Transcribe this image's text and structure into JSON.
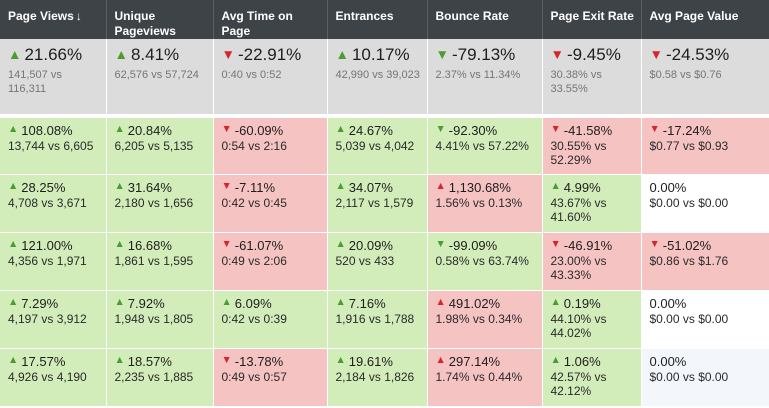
{
  "columns": [
    {
      "label": "Page Views",
      "sort": "↓"
    },
    {
      "label": "Unique Pageviews",
      "sort": ""
    },
    {
      "label": "Avg Time on Page",
      "sort": ""
    },
    {
      "label": "Entrances",
      "sort": ""
    },
    {
      "label": "Bounce Rate",
      "sort": ""
    },
    {
      "label": "Page Exit Rate",
      "sort": ""
    },
    {
      "label": "Avg Page Value",
      "sort": ""
    }
  ],
  "summary": [
    {
      "dir": "up",
      "change": "21.66%",
      "compare": "141,507 vs 116,311"
    },
    {
      "dir": "up",
      "change": "8.41%",
      "compare": "62,576 vs 57,724"
    },
    {
      "dir": "down",
      "change": "-22.91%",
      "compare": "0:40 vs 0:52"
    },
    {
      "dir": "up",
      "change": "10.17%",
      "compare": "42,990 vs 39,023"
    },
    {
      "dir": "down-green",
      "change": "-79.13%",
      "compare": "2.37% vs 11.34%"
    },
    {
      "dir": "down",
      "change": "-9.45%",
      "compare": "30.38% vs 33.55%"
    },
    {
      "dir": "down",
      "change": "-24.53%",
      "compare": "$0.58 vs $0.76"
    }
  ],
  "rows": [
    [
      {
        "dir": "up",
        "change": "108.08%",
        "compare": "13,744 vs 6,605",
        "bg": "green"
      },
      {
        "dir": "up",
        "change": "20.84%",
        "compare": "6,205 vs 5,135",
        "bg": "green"
      },
      {
        "dir": "down",
        "change": "-60.09%",
        "compare": "0:54 vs 2:16",
        "bg": "red"
      },
      {
        "dir": "up",
        "change": "24.67%",
        "compare": "5,039 vs 4,042",
        "bg": "green"
      },
      {
        "dir": "down-green",
        "change": "-92.30%",
        "compare": "4.41% vs 57.22%",
        "bg": "green"
      },
      {
        "dir": "down",
        "change": "-41.58%",
        "compare": "30.55% vs 52.29%",
        "bg": "red"
      },
      {
        "dir": "down",
        "change": "-17.24%",
        "compare": "$0.77 vs $0.93",
        "bg": "red"
      }
    ],
    [
      {
        "dir": "up",
        "change": "28.25%",
        "compare": "4,708 vs 3,671",
        "bg": "green"
      },
      {
        "dir": "up",
        "change": "31.64%",
        "compare": "2,180 vs 1,656",
        "bg": "green"
      },
      {
        "dir": "down",
        "change": "-7.11%",
        "compare": "0:42 vs 0:45",
        "bg": "red"
      },
      {
        "dir": "up",
        "change": "34.07%",
        "compare": "2,117 vs 1,579",
        "bg": "green"
      },
      {
        "dir": "up-red",
        "change": "1,130.68%",
        "compare": "1.56% vs 0.13%",
        "bg": "red"
      },
      {
        "dir": "up",
        "change": "4.99%",
        "compare": "43.67% vs 41.60%",
        "bg": "green"
      },
      {
        "dir": "",
        "change": "0.00%",
        "compare": "$0.00 vs $0.00",
        "bg": "white"
      }
    ],
    [
      {
        "dir": "up",
        "change": "121.00%",
        "compare": "4,356 vs 1,971",
        "bg": "green"
      },
      {
        "dir": "up",
        "change": "16.68%",
        "compare": "1,861 vs 1,595",
        "bg": "green"
      },
      {
        "dir": "down",
        "change": "-61.07%",
        "compare": "0:49 vs 2:06",
        "bg": "red"
      },
      {
        "dir": "up",
        "change": "20.09%",
        "compare": "520 vs 433",
        "bg": "green"
      },
      {
        "dir": "down-green",
        "change": "-99.09%",
        "compare": "0.58% vs 63.74%",
        "bg": "green"
      },
      {
        "dir": "down",
        "change": "-46.91%",
        "compare": "23.00% vs 43.33%",
        "bg": "red"
      },
      {
        "dir": "down",
        "change": "-51.02%",
        "compare": "$0.86 vs $1.76",
        "bg": "red"
      }
    ],
    [
      {
        "dir": "up",
        "change": "7.29%",
        "compare": "4,197 vs 3,912",
        "bg": "green"
      },
      {
        "dir": "up",
        "change": "7.92%",
        "compare": "1,948 vs 1,805",
        "bg": "green"
      },
      {
        "dir": "up",
        "change": "6.09%",
        "compare": "0:42 vs 0:39",
        "bg": "green"
      },
      {
        "dir": "up",
        "change": "7.16%",
        "compare": "1,916 vs 1,788",
        "bg": "green"
      },
      {
        "dir": "up-red",
        "change": "491.02%",
        "compare": "1.98% vs 0.34%",
        "bg": "red"
      },
      {
        "dir": "up",
        "change": "0.19%",
        "compare": "44.10% vs 44.02%",
        "bg": "green"
      },
      {
        "dir": "",
        "change": "0.00%",
        "compare": "$0.00 vs $0.00",
        "bg": "white"
      }
    ],
    [
      {
        "dir": "up",
        "change": "17.57%",
        "compare": "4,926 vs 4,190",
        "bg": "green"
      },
      {
        "dir": "up",
        "change": "18.57%",
        "compare": "2,235 vs 1,885",
        "bg": "green"
      },
      {
        "dir": "down",
        "change": "-13.78%",
        "compare": "0:49 vs 0:57",
        "bg": "red"
      },
      {
        "dir": "up",
        "change": "19.61%",
        "compare": "2,184 vs 1,826",
        "bg": "green"
      },
      {
        "dir": "up-red",
        "change": "297.14%",
        "compare": "1.74% vs 0.44%",
        "bg": "red"
      },
      {
        "dir": "up",
        "change": "1.06%",
        "compare": "42.57% vs 42.12%",
        "bg": "green"
      },
      {
        "dir": "",
        "change": "0.00%",
        "compare": "$0.00 vs $0.00",
        "bg": "pale"
      }
    ]
  ]
}
